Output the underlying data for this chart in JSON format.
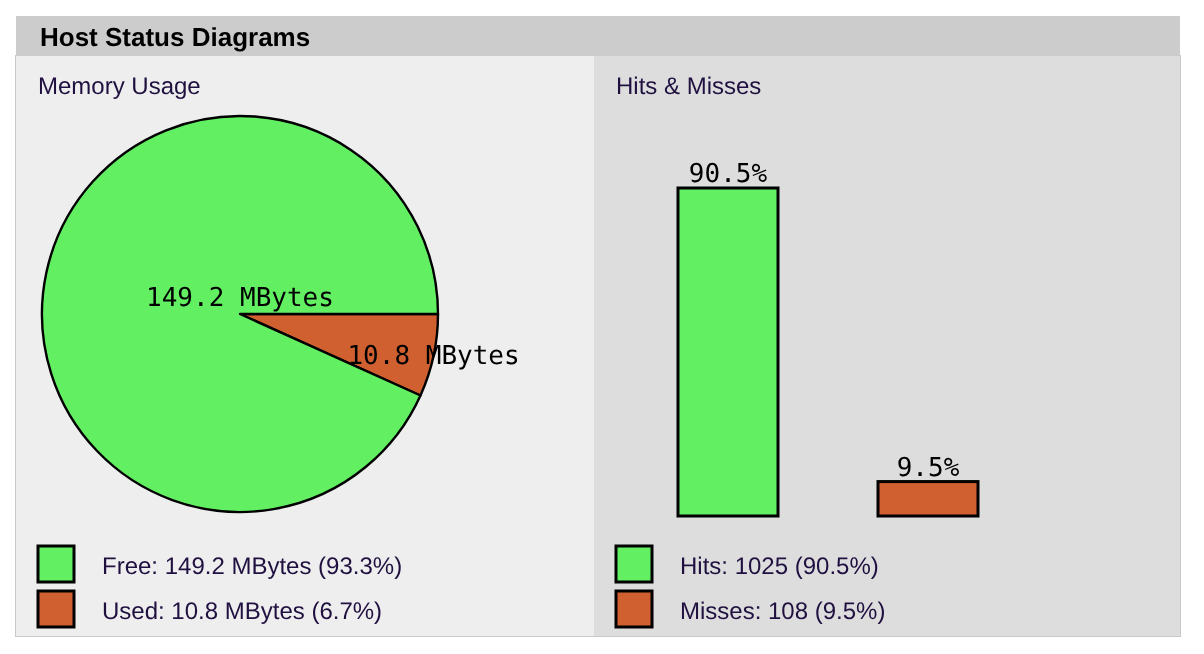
{
  "chart_data": [
    {
      "type": "other",
      "title": "Host Status Diagrams"
    },
    {
      "type": "pie",
      "title": "Memory Usage",
      "categories": [
        "Free: 149.2 MBytes (93.3%)",
        "Used: 10.8 MBytes (6.7%)"
      ],
      "values": [
        149.2,
        10.8
      ],
      "value_labels": [
        "149.2 MBytes",
        "10.8 MBytes"
      ],
      "colors": [
        "#62f062",
        "#d06030"
      ],
      "legend": "bottom"
    },
    {
      "type": "bar",
      "title": "Hits & Misses",
      "categories": [
        null,
        null
      ],
      "stacked": true,
      "series": [
        {
          "name": "Hits: 1025 (90.5%)",
          "color": "#62f062",
          "values": [
            90.5,
            null
          ],
          "value_labels": [
            "90.5%",
            null
          ]
        },
        {
          "name": "Misses: 108 (9.5%)",
          "color": "#d06030",
          "values": [
            null,
            9.5
          ],
          "value_labels": [
            null,
            "9.5%"
          ]
        }
      ],
      "legend": "bottom"
    }
  ]
}
